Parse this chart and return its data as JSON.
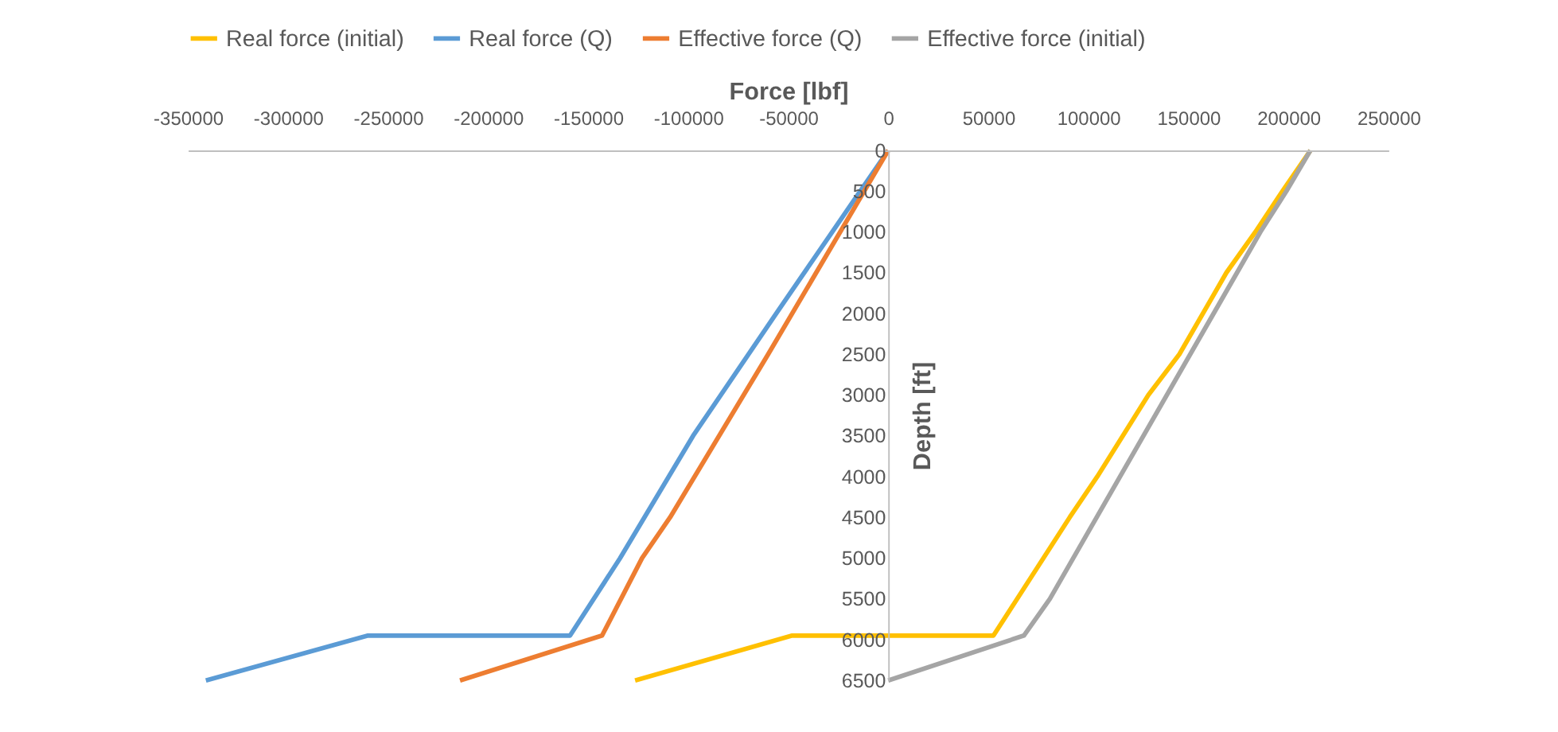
{
  "chart_data": {
    "type": "line",
    "xlabel": "Force [lbf]",
    "ylabel": "Depth [ft]",
    "xlim": [
      -350000,
      250000
    ],
    "xticks": [
      -350000,
      -300000,
      -250000,
      -200000,
      -150000,
      -100000,
      -50000,
      0,
      50000,
      100000,
      150000,
      200000,
      250000
    ],
    "ylim": [
      6500,
      0
    ],
    "yticks": [
      0,
      500,
      1000,
      1500,
      2000,
      2500,
      3000,
      3500,
      4000,
      4500,
      5000,
      5500,
      6000,
      6500
    ],
    "grid": false,
    "legend": "top",
    "marker": "none",
    "line_style": "solid",
    "series": [
      {
        "name": "Real force (initial)",
        "color": "#ffc000",
        "x": [
          211000,
          197000,
          183500,
          169000,
          145500,
          130000,
          104500,
          90700,
          52600,
          -48000,
          -126500
        ],
        "values": [
          0,
          500,
          1000,
          1500,
          2500,
          3000,
          4000,
          4500,
          5950,
          5950,
          6500
        ]
      },
      {
        "name": "Real force (Q)",
        "color": "#5b9bd5",
        "x": [
          0,
          -28000,
          -56000,
          -97500,
          -134000,
          -159000,
          -260000,
          -341000
        ],
        "values": [
          0,
          1000,
          2000,
          3500,
          5000,
          5950,
          5950,
          6500
        ]
      },
      {
        "name": "Effective force (Q)",
        "color": "#ed7d31",
        "x": [
          0,
          -60000,
          -109000,
          -123000,
          -143000,
          -214000
        ],
        "values": [
          0,
          2500,
          4500,
          5000,
          5950,
          6500
        ]
      },
      {
        "name": "Effective force (initial)",
        "color": "#a5a5a5",
        "x": [
          211000,
          199000,
          186000,
          80800,
          67800,
          0
        ],
        "values": [
          0,
          500,
          1000,
          5500,
          5950,
          6500
        ]
      }
    ]
  }
}
